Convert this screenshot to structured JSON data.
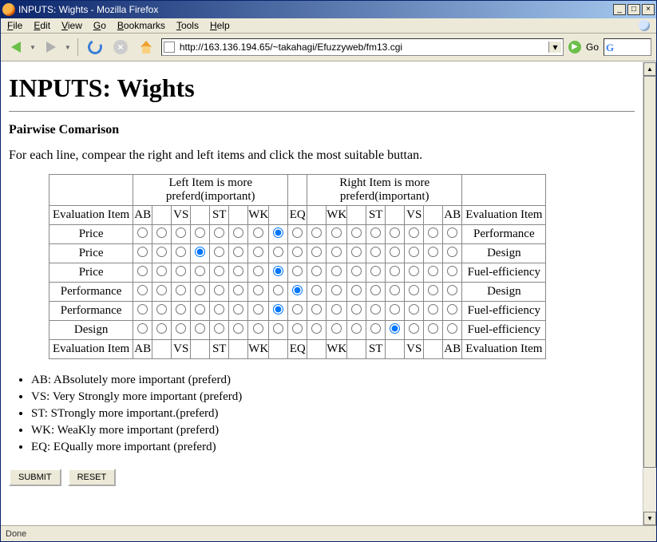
{
  "window": {
    "title": "INPUTS: Wights - Mozilla Firefox"
  },
  "menubar": {
    "items": [
      "File",
      "Edit",
      "View",
      "Go",
      "Bookmarks",
      "Tools",
      "Help"
    ]
  },
  "toolbar": {
    "url": "http://163.136.194.65/~takahagi/Efuzzyweb/fm13.cgi",
    "go_label": "Go"
  },
  "page": {
    "h1": "INPUTS: Wights",
    "h3": "Pairwise Comarison",
    "intro": "For each line, compear the right and left items and click the most suitable buttan.",
    "left_header_label": "Left Item is more preferd(important)",
    "right_header_label": "Right Item is more preferd(important)",
    "eval_label": "Evaluation Item",
    "scale": [
      "AB",
      "",
      "VS",
      "",
      "ST",
      "",
      "WK",
      "",
      "EQ",
      "",
      "WK",
      "",
      "ST",
      "",
      "VS",
      "",
      "AB"
    ],
    "rows": [
      {
        "left": "Price",
        "right": "Performance",
        "selected": 7
      },
      {
        "left": "Price",
        "right": "Design",
        "selected": 3
      },
      {
        "left": "Price",
        "right": "Fuel-efficiency",
        "selected": 7
      },
      {
        "left": "Performance",
        "right": "Design",
        "selected": 8
      },
      {
        "left": "Performance",
        "right": "Fuel-efficiency",
        "selected": 7
      },
      {
        "left": "Design",
        "right": "Fuel-efficiency",
        "selected": 13
      }
    ],
    "legend": [
      "AB: ABsolutely more important (preferd)",
      "VS: Very Strongly more important (preferd)",
      "ST: STrongly more important.(preferd)",
      "WK: WeaKly more important (preferd)",
      "EQ: EQually more important (preferd)"
    ],
    "submit_label": "SUBMIT",
    "reset_label": "RESET"
  },
  "statusbar": {
    "text": "Done"
  },
  "colors": {
    "chrome_bg": "#ece9d8",
    "titlebar_from": "#0a246a",
    "titlebar_to": "#a6caf0",
    "border_gray": "#888888"
  }
}
